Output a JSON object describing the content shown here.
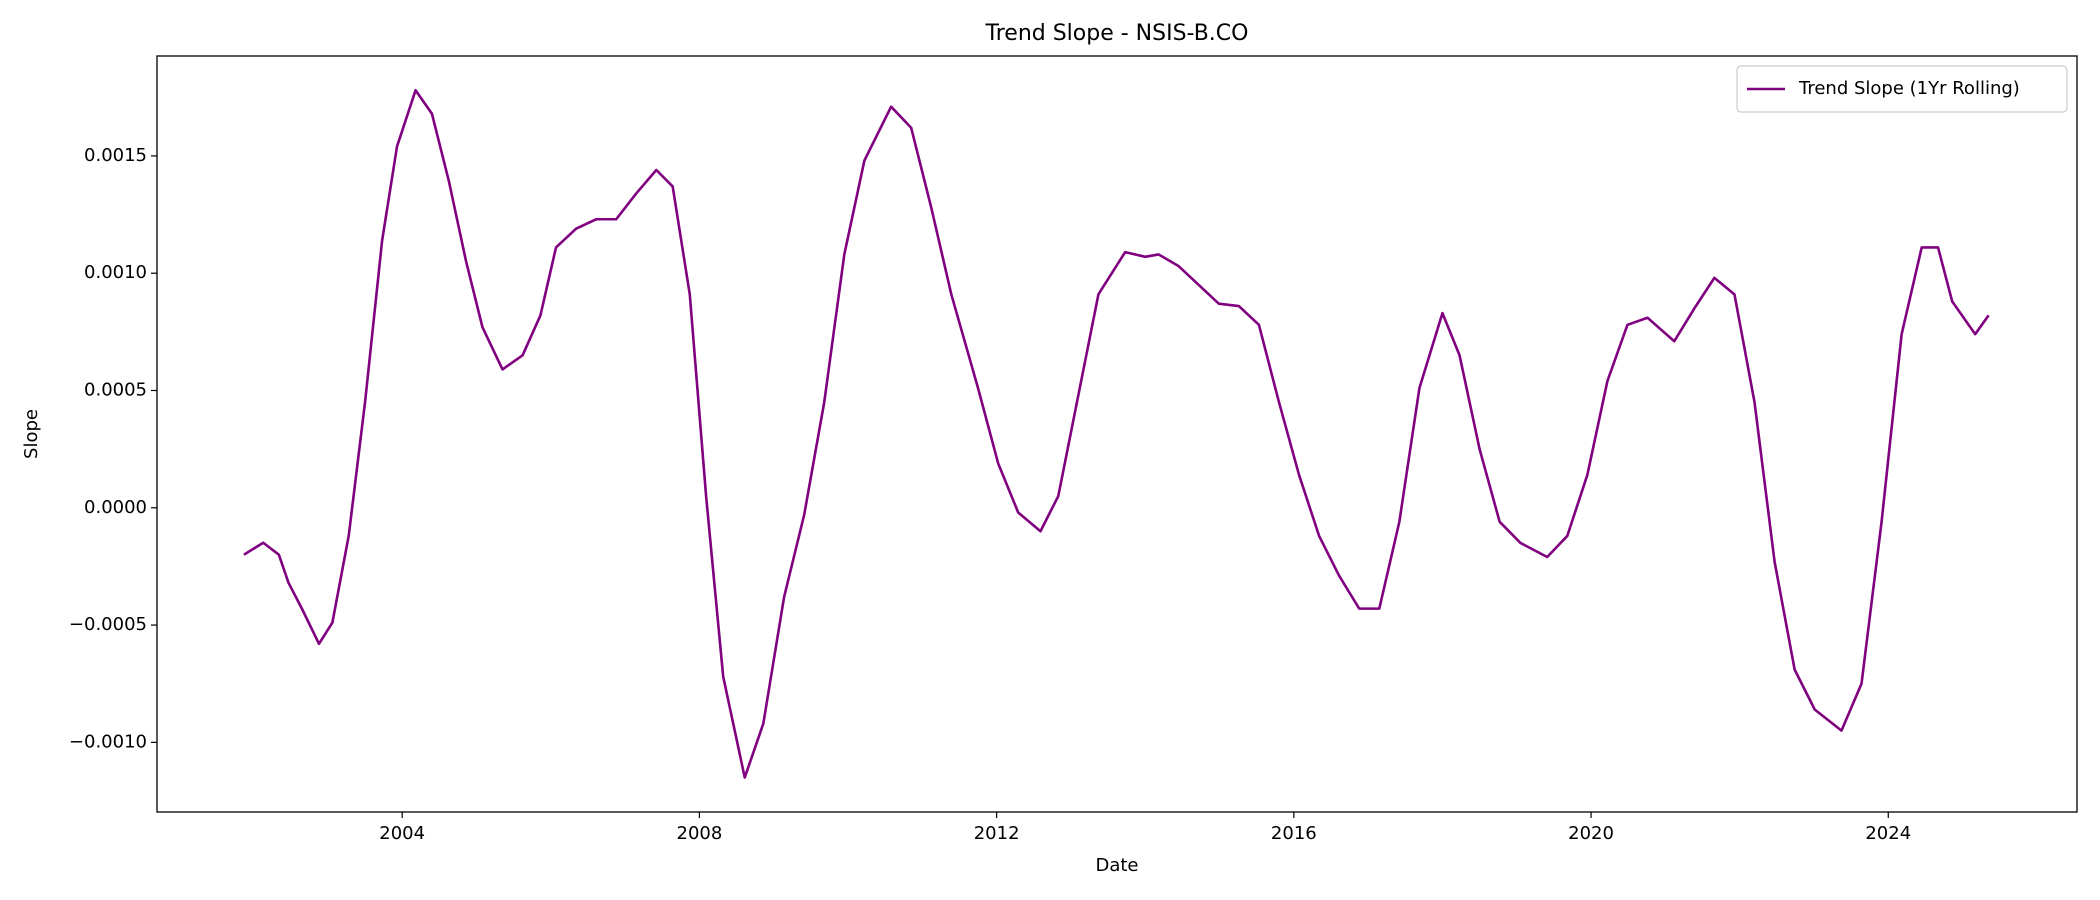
{
  "chart_data": {
    "type": "line",
    "title": "Trend Slope - NSIS-B.CO",
    "x_label": "Date",
    "y_label": "Slope",
    "x": [
      2001.87,
      2002.13,
      2002.34,
      2002.47,
      2002.65,
      2002.88,
      2003.06,
      2003.28,
      2003.5,
      2003.73,
      2003.93,
      2004.18,
      2004.4,
      2004.63,
      2004.86,
      2005.08,
      2005.35,
      2005.62,
      2005.86,
      2006.07,
      2006.34,
      2006.61,
      2006.88,
      2007.15,
      2007.42,
      2007.64,
      2007.87,
      2008.09,
      2008.32,
      2008.61,
      2008.86,
      2009.14,
      2009.41,
      2009.68,
      2009.95,
      2010.22,
      2010.58,
      2010.85,
      2011.12,
      2011.39,
      2011.75,
      2012.02,
      2012.29,
      2012.59,
      2012.83,
      2013.1,
      2013.37,
      2013.73,
      2014.0,
      2014.18,
      2014.45,
      2014.72,
      2014.99,
      2015.26,
      2015.53,
      2015.8,
      2016.07,
      2016.34,
      2016.61,
      2016.88,
      2017.15,
      2017.42,
      2017.69,
      2018.0,
      2018.23,
      2018.5,
      2018.77,
      2019.05,
      2019.41,
      2019.68,
      2019.95,
      2020.22,
      2020.49,
      2020.76,
      2021.12,
      2021.39,
      2021.66,
      2021.93,
      2022.2,
      2022.47,
      2022.74,
      2023.01,
      2023.37,
      2023.64,
      2023.91,
      2024.18,
      2024.45,
      2024.67,
      2024.86,
      2025.17,
      2025.35
    ],
    "series": [
      {
        "name": "Trend Slope (1Yr Rolling)",
        "color": "#800080",
        "values": [
          -0.0002,
          -0.000149,
          -0.0002,
          -0.00032,
          -0.00043,
          -0.00058,
          -0.00049,
          -0.00012,
          0.00045,
          0.00114,
          0.00154,
          0.00178,
          0.00168,
          0.00139,
          0.00105,
          0.00077,
          0.00059,
          0.00065,
          0.00082,
          0.00111,
          0.00119,
          0.00123,
          0.00123,
          0.00134,
          0.00144,
          0.00137,
          0.00091,
          5e-05,
          -0.00072,
          -0.00115,
          -0.00092,
          -0.00038,
          -3e-05,
          0.00045,
          0.00108,
          0.00148,
          0.00171,
          0.00162,
          0.00128,
          0.00091,
          0.00051,
          0.00019,
          -2e-05,
          -0.0001,
          5e-05,
          0.00048,
          0.00091,
          0.00109,
          0.00107,
          0.00108,
          0.00103,
          0.00095,
          0.00087,
          0.00086,
          0.00078,
          0.00045,
          0.00014,
          -0.00012,
          -0.00029,
          -0.00043,
          -0.00043,
          -6e-05,
          0.00051,
          0.00083,
          0.00065,
          0.00025,
          -6e-05,
          -0.00015,
          -0.00021,
          -0.00012,
          0.00014,
          0.00054,
          0.00078,
          0.00081,
          0.00071,
          0.00085,
          0.00098,
          0.00091,
          0.00045,
          -0.00023,
          -0.00069,
          -0.00086,
          -0.00095,
          -0.00075,
          -6e-05,
          0.00074,
          0.00111,
          0.00111,
          0.00088,
          0.00074,
          0.00082
        ]
      }
    ],
    "xlim": [
      2000.7,
      2026.54
    ],
    "xticks": [
      2004,
      2008,
      2012,
      2016,
      2020,
      2024
    ],
    "ylim": [
      -0.001297,
      0.001926
    ],
    "yticks": [
      {
        "value": -0.001,
        "label": "−0.0010"
      },
      {
        "value": -0.0005,
        "label": "−0.0005"
      },
      {
        "value": 0,
        "label": "0.0000"
      },
      0.0005,
      {
        "value": 0.001,
        "label": "0.0010"
      },
      0.0015
    ],
    "legend": "upper right",
    "grid": false
  }
}
